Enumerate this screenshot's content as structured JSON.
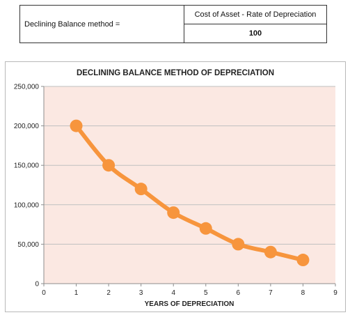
{
  "formula": {
    "left_label": "Declining Balance method =",
    "numerator": "Cost of Asset - Rate of Depreciation",
    "denominator": "100"
  },
  "chart_data": {
    "type": "line",
    "title": "DECLINING BALANCE METHOD OF DEPRECIATION",
    "xlabel": "YEARS OF DEPRECIATION",
    "ylabel": "",
    "x": [
      1,
      2,
      3,
      4,
      5,
      6,
      7,
      8
    ],
    "series": [
      {
        "values": [
          200000,
          150000,
          120000,
          90000,
          70000,
          50000,
          40000,
          30000
        ]
      }
    ],
    "xlim": [
      0,
      9
    ],
    "ylim": [
      0,
      250000
    ],
    "x_ticks": [
      "0",
      "1",
      "2",
      "3",
      "4",
      "5",
      "6",
      "7",
      "8",
      "9"
    ],
    "y_ticks": [
      "0",
      "50,000",
      "100,000",
      "150,000",
      "200,000",
      "250,000"
    ],
    "grid": true,
    "colors": {
      "line": "#f7953d",
      "plot_background": "#fbe8e2",
      "gridline": "#bfbfbf",
      "axis": "#8c8c8c"
    }
  }
}
